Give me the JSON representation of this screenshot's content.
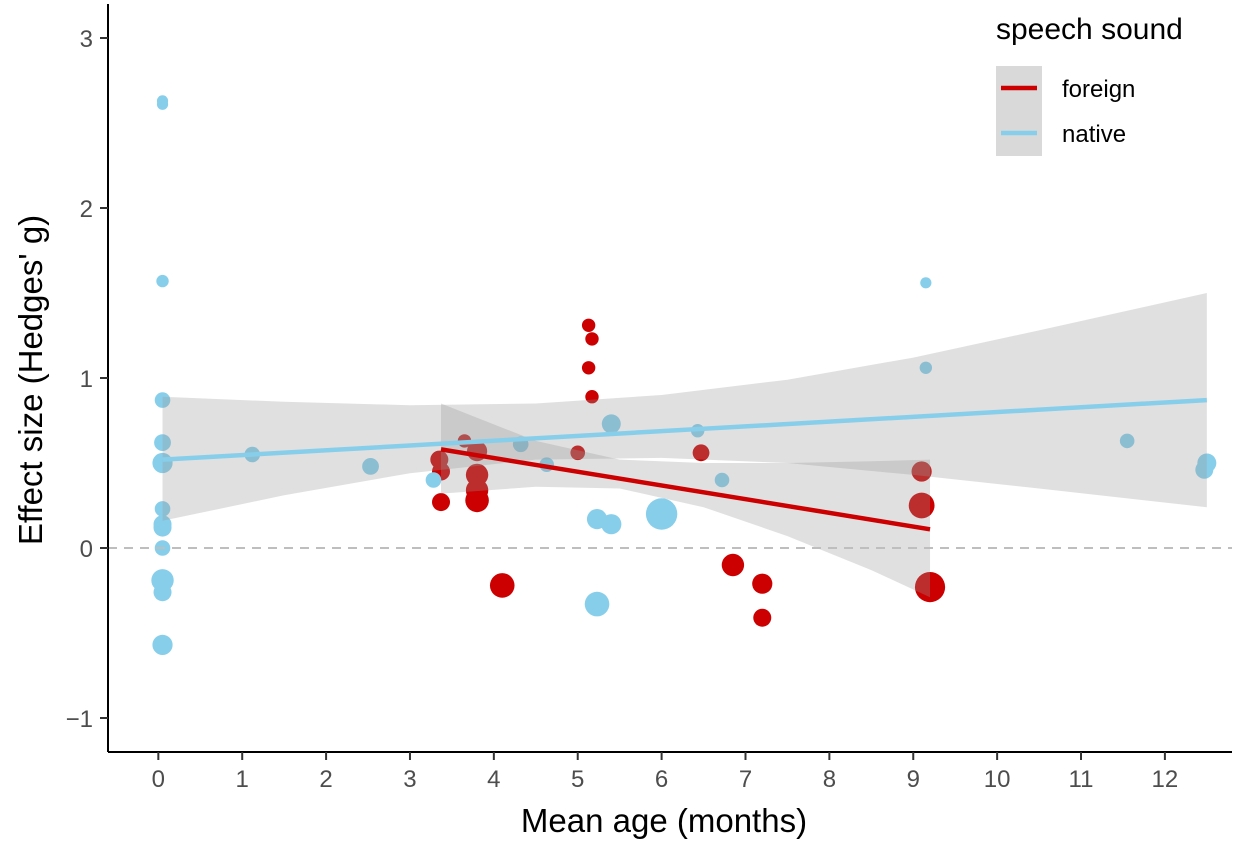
{
  "chart_data": {
    "type": "scatter",
    "xlabel": "Mean age (months)",
    "ylabel": "Effect size (Hedges' g)",
    "xlim": [
      -0.6,
      12.8
    ],
    "ylim": [
      -1.2,
      3.2
    ],
    "x_ticks": [
      "0",
      "1",
      "2",
      "3",
      "4",
      "5",
      "6",
      "7",
      "8",
      "9",
      "10",
      "11",
      "12"
    ],
    "y_ticks": [
      "−1",
      "0",
      "1",
      "2",
      "3"
    ],
    "reference_line": {
      "y": 0,
      "style": "dashed",
      "color": "#bebebe"
    },
    "legend": {
      "title": "speech sound",
      "position": "top-right"
    },
    "series": [
      {
        "name": "foreign",
        "color": "#cc0000",
        "trend": {
          "x0": 3.37,
          "x1": 9.2,
          "y0": 0.58,
          "y1": 0.11
        },
        "ci_band": [
          {
            "x": 3.37,
            "lo": 0.32,
            "hi": 0.85
          },
          {
            "x": 4.5,
            "lo": 0.36,
            "hi": 0.63
          },
          {
            "x": 5.5,
            "lo": 0.35,
            "hi": 0.52
          },
          {
            "x": 6.5,
            "lo": 0.24,
            "hi": 0.5
          },
          {
            "x": 7.5,
            "lo": 0.07,
            "hi": 0.5
          },
          {
            "x": 8.5,
            "lo": -0.13,
            "hi": 0.51
          },
          {
            "x": 9.2,
            "lo": -0.29,
            "hi": 0.52
          }
        ],
        "points": [
          {
            "x": 3.35,
            "y": 0.52,
            "size": 1.6
          },
          {
            "x": 3.37,
            "y": 0.45,
            "size": 1.6
          },
          {
            "x": 3.37,
            "y": 0.27,
            "size": 1.6
          },
          {
            "x": 3.65,
            "y": 0.63,
            "size": 1.2
          },
          {
            "x": 3.8,
            "y": 0.57,
            "size": 1.8
          },
          {
            "x": 3.8,
            "y": 0.43,
            "size": 2.0
          },
          {
            "x": 3.8,
            "y": 0.34,
            "size": 2.0
          },
          {
            "x": 3.8,
            "y": 0.28,
            "size": 2.1
          },
          {
            "x": 4.1,
            "y": -0.22,
            "size": 2.2
          },
          {
            "x": 5.0,
            "y": 0.56,
            "size": 1.3
          },
          {
            "x": 5.13,
            "y": 1.31,
            "size": 1.2
          },
          {
            "x": 5.17,
            "y": 1.23,
            "size": 1.2
          },
          {
            "x": 5.13,
            "y": 1.06,
            "size": 1.2
          },
          {
            "x": 5.17,
            "y": 0.89,
            "size": 1.2
          },
          {
            "x": 6.47,
            "y": 0.56,
            "size": 1.5
          },
          {
            "x": 6.85,
            "y": -0.1,
            "size": 2.0
          },
          {
            "x": 7.2,
            "y": -0.21,
            "size": 1.8
          },
          {
            "x": 7.2,
            "y": -0.41,
            "size": 1.6
          },
          {
            "x": 9.1,
            "y": 0.45,
            "size": 1.8
          },
          {
            "x": 9.1,
            "y": 0.25,
            "size": 2.3
          },
          {
            "x": 9.2,
            "y": -0.23,
            "size": 2.7
          }
        ]
      },
      {
        "name": "native",
        "color": "#87ceeb",
        "trend": {
          "x0": 0.05,
          "x1": 12.5,
          "y0": 0.52,
          "y1": 0.87
        },
        "ci_band": [
          {
            "x": 0.05,
            "lo": 0.16,
            "hi": 0.89
          },
          {
            "x": 1.5,
            "lo": 0.31,
            "hi": 0.86
          },
          {
            "x": 3.0,
            "lo": 0.44,
            "hi": 0.84
          },
          {
            "x": 4.5,
            "lo": 0.52,
            "hi": 0.85
          },
          {
            "x": 6.0,
            "lo": 0.53,
            "hi": 0.9
          },
          {
            "x": 7.5,
            "lo": 0.5,
            "hi": 0.99
          },
          {
            "x": 9.0,
            "lo": 0.43,
            "hi": 1.12
          },
          {
            "x": 10.5,
            "lo": 0.35,
            "hi": 1.28
          },
          {
            "x": 12.5,
            "lo": 0.24,
            "hi": 1.5
          }
        ],
        "points": [
          {
            "x": 0.05,
            "y": 2.63,
            "size": 1.0
          },
          {
            "x": 0.05,
            "y": 2.61,
            "size": 1.0
          },
          {
            "x": 0.05,
            "y": 1.57,
            "size": 1.1
          },
          {
            "x": 0.05,
            "y": 0.87,
            "size": 1.4
          },
          {
            "x": 0.05,
            "y": 0.62,
            "size": 1.5
          },
          {
            "x": 0.05,
            "y": 0.5,
            "size": 1.8
          },
          {
            "x": 0.05,
            "y": 0.23,
            "size": 1.4
          },
          {
            "x": 0.05,
            "y": 0.14,
            "size": 1.6
          },
          {
            "x": 0.05,
            "y": 0.12,
            "size": 1.6
          },
          {
            "x": 0.05,
            "y": 0.0,
            "size": 1.4
          },
          {
            "x": 0.05,
            "y": -0.19,
            "size": 2.0
          },
          {
            "x": 0.05,
            "y": -0.26,
            "size": 1.6
          },
          {
            "x": 0.05,
            "y": -0.57,
            "size": 1.8
          },
          {
            "x": 1.12,
            "y": 0.55,
            "size": 1.4
          },
          {
            "x": 2.53,
            "y": 0.48,
            "size": 1.5
          },
          {
            "x": 3.28,
            "y": 0.4,
            "size": 1.4
          },
          {
            "x": 4.32,
            "y": 0.61,
            "size": 1.4
          },
          {
            "x": 4.63,
            "y": 0.49,
            "size": 1.3
          },
          {
            "x": 5.23,
            "y": 0.17,
            "size": 1.8
          },
          {
            "x": 5.4,
            "y": 0.14,
            "size": 1.8
          },
          {
            "x": 5.23,
            "y": -0.33,
            "size": 2.2
          },
          {
            "x": 5.4,
            "y": 0.73,
            "size": 1.7
          },
          {
            "x": 6.0,
            "y": 0.2,
            "size": 2.8
          },
          {
            "x": 6.43,
            "y": 0.69,
            "size": 1.2
          },
          {
            "x": 6.72,
            "y": 0.4,
            "size": 1.3
          },
          {
            "x": 9.15,
            "y": 1.56,
            "size": 1.0
          },
          {
            "x": 9.15,
            "y": 1.06,
            "size": 1.1
          },
          {
            "x": 11.55,
            "y": 0.63,
            "size": 1.3
          },
          {
            "x": 12.5,
            "y": 0.5,
            "size": 1.7
          },
          {
            "x": 12.47,
            "y": 0.46,
            "size": 1.6
          }
        ]
      }
    ]
  }
}
